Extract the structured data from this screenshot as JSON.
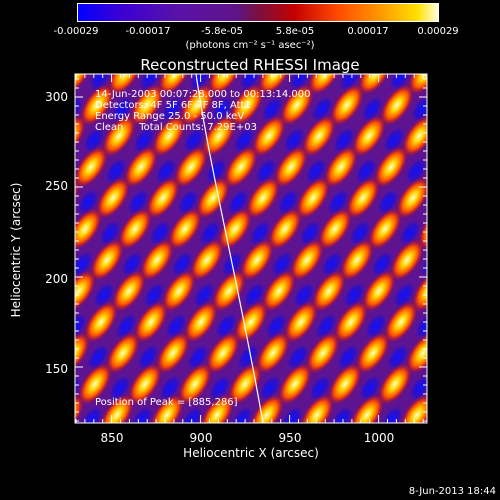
{
  "colorbar": {
    "ticks": [
      "-0.00029",
      "-0.00017",
      "-5.8e-05",
      "5.8e-05",
      "0.00017",
      "0.00029"
    ],
    "units": "(photons cm⁻² s⁻¹ asec⁻²)"
  },
  "title": "Reconstructed RHESSI Image",
  "info": {
    "time": "14-Jun-2003 00:07:28.000 to 00:13:14.000",
    "detectors": "Detectors: 4F 5F 6F 7F 8F, Att1",
    "energy": "Energy Range 25.0 - 50.0 keV",
    "method": "Clean     Total Counts: 7.29E+03"
  },
  "peak": "Position of Peak = [885,286]",
  "axes": {
    "xlabel": "Heliocentric X (arcsec)",
    "ylabel": "Heliocentric Y (arcsec)",
    "xticks": [
      "850",
      "900",
      "950",
      "1000"
    ],
    "yticks": [
      "300",
      "250",
      "200",
      "150"
    ]
  },
  "footer_date": "8-Jun-2013 18:44"
}
